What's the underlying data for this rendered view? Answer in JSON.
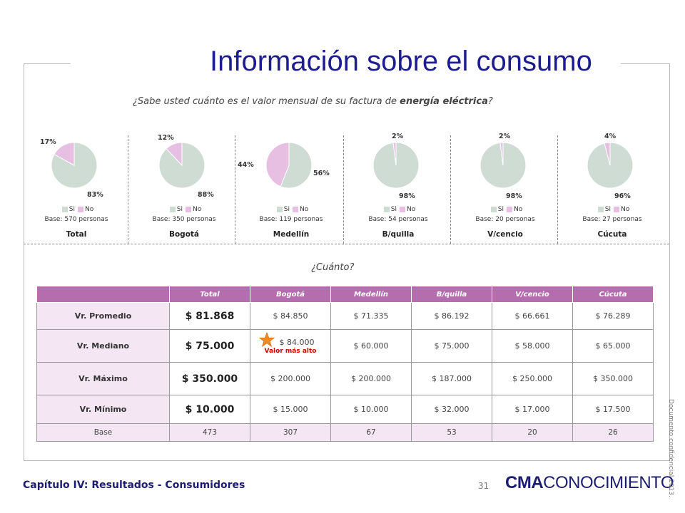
{
  "title": "Información sobre el consumo",
  "question": {
    "prefix": "¿Sabe usted cuánto es el valor mensual de su factura de ",
    "bold": "energía eléctrica",
    "suffix": "?"
  },
  "legend": {
    "yes": "Si",
    "no": "No"
  },
  "colors": {
    "yes": "#cfdcd4",
    "no": "#e6bfe2",
    "header": "#b46eae",
    "rowlabel_bg": "#f4e6f2",
    "title": "#1d1d8f",
    "highlight": "#cc0000",
    "star": "#f08a24"
  },
  "chart_data": [
    {
      "type": "pie",
      "title": "Total",
      "base": "Base: 570 personas",
      "categories": [
        "Si",
        "No"
      ],
      "values": [
        83,
        17
      ],
      "labels": [
        "83%",
        "17%"
      ]
    },
    {
      "type": "pie",
      "title": "Bogotá",
      "base": "Base: 350 personas",
      "categories": [
        "Si",
        "No"
      ],
      "values": [
        88,
        12
      ],
      "labels": [
        "88%",
        "12%"
      ]
    },
    {
      "type": "pie",
      "title": "Medellín",
      "base": "Base: 119 personas",
      "categories": [
        "Si",
        "No"
      ],
      "values": [
        56,
        44
      ],
      "labels": [
        "56%",
        "44%"
      ]
    },
    {
      "type": "pie",
      "title": "B/quilla",
      "base": "Base: 54 personas",
      "categories": [
        "Si",
        "No"
      ],
      "values": [
        98,
        2
      ],
      "labels": [
        "98%",
        "2%"
      ]
    },
    {
      "type": "pie",
      "title": "V/cencio",
      "base": "Base: 20 personas",
      "categories": [
        "Si",
        "No"
      ],
      "values": [
        98,
        2
      ],
      "labels": [
        "98%",
        "2%"
      ]
    },
    {
      "type": "pie",
      "title": "Cúcuta",
      "base": "Base: 27 personas",
      "categories": [
        "Si",
        "No"
      ],
      "values": [
        96,
        4
      ],
      "labels": [
        "96%",
        "4%"
      ]
    }
  ],
  "cuanto": "¿Cuánto?",
  "table": {
    "headers": [
      "",
      "Total",
      "Bogotá",
      "Medellín",
      "B/quilla",
      "V/cencio",
      "Cúcuta"
    ],
    "rows": [
      {
        "label": "Vr. Promedio",
        "values": [
          "$ 81.868",
          "$ 84.850",
          "$ 71.335",
          "$ 86.192",
          "$ 66.661",
          "$ 76.289"
        ]
      },
      {
        "label": "Vr. Mediano",
        "values": [
          "$ 75.000",
          "$ 84.000",
          "$ 60.000",
          "$ 75.000",
          "$ 58.000",
          "$ 65.000"
        ],
        "note": "Valor más alto"
      },
      {
        "label": "Vr. Máximo",
        "values": [
          "$ 350.000",
          "$ 200.000",
          "$ 200.000",
          "$ 187.000",
          "$ 250.000",
          "$ 350.000"
        ]
      },
      {
        "label": "Vr. Mínimo",
        "values": [
          "$ 10.000",
          "$ 15.000",
          "$ 10.000",
          "$ 32.000",
          "$ 17.000",
          "$ 17.500"
        ]
      }
    ],
    "base": {
      "label": "Base",
      "values": [
        "473",
        "307",
        "67",
        "53",
        "20",
        "26"
      ]
    }
  },
  "footer": {
    "chapter": "Capítulo IV: Resultados - Consumidores",
    "page": "31",
    "brand_bold": "CMA",
    "brand_rest": "CONOCIMIENTO",
    "confidential": "Documento confidencial 2013."
  }
}
